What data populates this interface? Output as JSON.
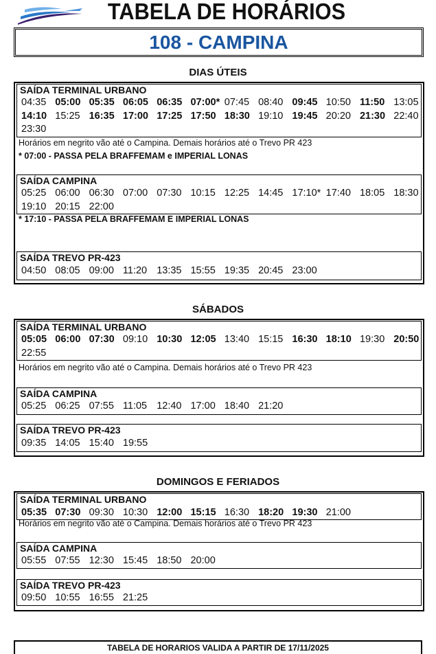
{
  "header": {
    "title": "TABELA DE HORÁRIOS",
    "route": "108 - CAMPINA",
    "route_color": "#1a56a0"
  },
  "sections": [
    {
      "title": "DIAS ÚTEIS",
      "blocks": [
        {
          "title": "SAÍDA TERMINAL URBANO",
          "times": [
            {
              "t": "04:35",
              "b": false
            },
            {
              "t": "05:00",
              "b": true
            },
            {
              "t": "05:35",
              "b": true
            },
            {
              "t": "06:05",
              "b": true
            },
            {
              "t": "06:35",
              "b": true
            },
            {
              "t": "07:00*",
              "b": true
            },
            {
              "t": "07:45",
              "b": false
            },
            {
              "t": "08:40",
              "b": false
            },
            {
              "t": "09:45",
              "b": true
            },
            {
              "t": "10:50",
              "b": false
            },
            {
              "t": "11:50",
              "b": true
            },
            {
              "t": "13:05",
              "b": false
            },
            {
              "t": "14:10",
              "b": true
            },
            {
              "t": "15:25",
              "b": false
            },
            {
              "t": "16:35",
              "b": true
            },
            {
              "t": "17:00",
              "b": true
            },
            {
              "t": "17:25",
              "b": true
            },
            {
              "t": "17:50",
              "b": true
            },
            {
              "t": "18:30",
              "b": true
            },
            {
              "t": "19:10",
              "b": false
            },
            {
              "t": "19:45",
              "b": true
            },
            {
              "t": "20:20",
              "b": false
            },
            {
              "t": "21:30",
              "b": true
            },
            {
              "t": "22:40",
              "b": false
            },
            {
              "t": "23:30",
              "b": false
            }
          ]
        },
        {
          "title": "SAÍDA CAMPINA",
          "times": [
            {
              "t": "05:25",
              "b": false
            },
            {
              "t": "06:00",
              "b": false
            },
            {
              "t": "06:30",
              "b": false
            },
            {
              "t": "07:00",
              "b": false
            },
            {
              "t": "07:30",
              "b": false
            },
            {
              "t": "10:15",
              "b": false
            },
            {
              "t": "12:25",
              "b": false
            },
            {
              "t": "14:45",
              "b": false
            },
            {
              "t": "17:10*",
              "b": false
            },
            {
              "t": "17:40",
              "b": false
            },
            {
              "t": "18:05",
              "b": false
            },
            {
              "t": "18:30",
              "b": false
            },
            {
              "t": "19:10",
              "b": false
            },
            {
              "t": "20:15",
              "b": false
            },
            {
              "t": "22:00",
              "b": false
            }
          ]
        },
        {
          "title": "SAÍDA TREVO PR-423",
          "times": [
            {
              "t": "04:50",
              "b": false
            },
            {
              "t": "08:05",
              "b": false
            },
            {
              "t": "09:00",
              "b": false
            },
            {
              "t": "11:20",
              "b": false
            },
            {
              "t": "13:35",
              "b": false
            },
            {
              "t": "15:55",
              "b": false
            },
            {
              "t": "19:35",
              "b": false
            },
            {
              "t": "20:45",
              "b": false
            },
            {
              "t": "23:00",
              "b": false
            }
          ]
        }
      ],
      "notes": [
        "Horários em negrito vão até o Campina. Demais horários até o Trevo PR 423",
        "* 07:00 - PASSA PELA BRAFFEMAM e IMPERIAL LONAS",
        "* 17:10 - PASSA PELA BRAFFEMAM E IMPERIAL LONAS"
      ]
    },
    {
      "title": "SÁBADOS",
      "blocks": [
        {
          "title": "SAÍDA TERMINAL URBANO",
          "times": [
            {
              "t": "05:05",
              "b": true
            },
            {
              "t": "06:00",
              "b": true
            },
            {
              "t": "07:30",
              "b": true
            },
            {
              "t": "09:10",
              "b": false
            },
            {
              "t": "10:30",
              "b": true
            },
            {
              "t": "12:05",
              "b": true
            },
            {
              "t": "13:40",
              "b": false
            },
            {
              "t": "15:15",
              "b": false
            },
            {
              "t": "16:30",
              "b": true
            },
            {
              "t": "18:10",
              "b": true
            },
            {
              "t": "19:30",
              "b": false
            },
            {
              "t": "20:50",
              "b": true
            },
            {
              "t": "22:55",
              "b": false
            }
          ]
        },
        {
          "title": "SAÍDA CAMPINA",
          "times": [
            {
              "t": "05:25",
              "b": false
            },
            {
              "t": "06:25",
              "b": false
            },
            {
              "t": "07:55",
              "b": false
            },
            {
              "t": "11:05",
              "b": false
            },
            {
              "t": "12:40",
              "b": false
            },
            {
              "t": "17:00",
              "b": false
            },
            {
              "t": "18:40",
              "b": false
            },
            {
              "t": "21:20",
              "b": false
            }
          ]
        },
        {
          "title": "SAÍDA TREVO PR-423",
          "times": [
            {
              "t": "09:35",
              "b": false
            },
            {
              "t": "14:05",
              "b": false
            },
            {
              "t": "15:40",
              "b": false
            },
            {
              "t": "19:55",
              "b": false
            }
          ]
        }
      ],
      "notes": [
        "Horários em negrito vão até o Campina. Demais horários até o Trevo PR 423"
      ]
    },
    {
      "title": "DOMINGOS E FERIADOS",
      "blocks": [
        {
          "title": "SAÍDA TERMINAL URBANO",
          "times": [
            {
              "t": "05:35",
              "b": true
            },
            {
              "t": "07:30",
              "b": true
            },
            {
              "t": "09:30",
              "b": false
            },
            {
              "t": "10:30",
              "b": false
            },
            {
              "t": "12:00",
              "b": true
            },
            {
              "t": "15:15",
              "b": true
            },
            {
              "t": "16:30",
              "b": false
            },
            {
              "t": "18:20",
              "b": true
            },
            {
              "t": "19:30",
              "b": true
            },
            {
              "t": "21:00",
              "b": false
            }
          ]
        },
        {
          "title": "SAÍDA CAMPINA",
          "times": [
            {
              "t": "05:55",
              "b": false
            },
            {
              "t": "07:55",
              "b": false
            },
            {
              "t": "12:30",
              "b": false
            },
            {
              "t": "15:45",
              "b": false
            },
            {
              "t": "18:50",
              "b": false
            },
            {
              "t": "20:00",
              "b": false
            }
          ]
        },
        {
          "title": "SAÍDA TREVO PR-423",
          "times": [
            {
              "t": "09:50",
              "b": false
            },
            {
              "t": "10:55",
              "b": false
            },
            {
              "t": "16:55",
              "b": false
            },
            {
              "t": "21:25",
              "b": false
            }
          ]
        }
      ],
      "notes": [
        "Horários em negrito vão até o Campina. Demais horários até o Trevo PR 423"
      ]
    }
  ],
  "footer": "TABELA DE HORARIOS VALIDA A PARTIR DE 17/11/2025"
}
